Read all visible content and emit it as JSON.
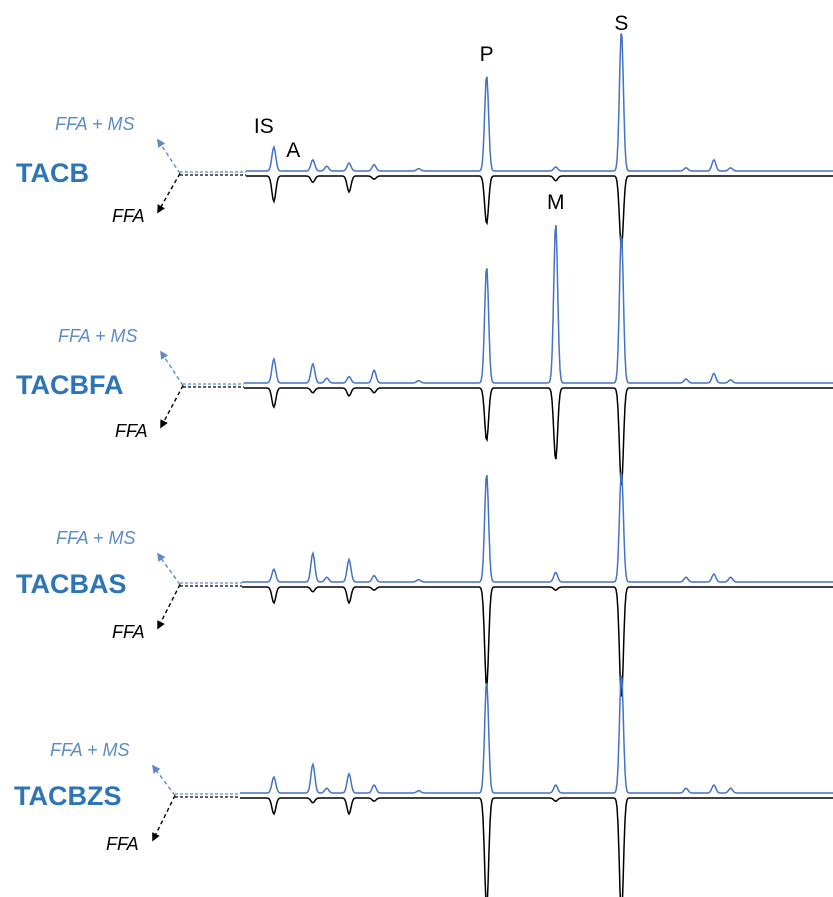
{
  "chart_data": {
    "type": "line",
    "title": "",
    "xlabel": "",
    "ylabel": "",
    "description": "",
    "trace_colors": {
      "upper": "#4472C4",
      "lower": "#000000"
    },
    "x_range": [
      0,
      100
    ],
    "y_range": [
      0,
      100
    ],
    "peak_labels": [
      {
        "label": "IS",
        "x": 5,
        "panel": 0
      },
      {
        "label": "A",
        "x": 11,
        "panel": 0
      },
      {
        "label": "P",
        "x": 43.2,
        "panel": 0
      },
      {
        "label": "S",
        "x": 67.4,
        "panel": 0
      },
      {
        "label": "M",
        "x": 55.6,
        "panel": 1
      }
    ],
    "panels": [
      {
        "sample": "TACB",
        "upper_label": "FFA + MS",
        "lower_label": "FFA",
        "upper_peaks": [
          [
            5,
            15
          ],
          [
            12,
            7
          ],
          [
            14.5,
            3
          ],
          [
            18.5,
            5
          ],
          [
            23,
            4
          ],
          [
            31,
            1.5
          ],
          [
            43.2,
            60
          ],
          [
            55.6,
            2.5
          ],
          [
            67.4,
            88
          ],
          [
            79,
            2
          ],
          [
            84,
            7
          ],
          [
            87,
            2
          ]
        ],
        "lower_peaks": [
          [
            5,
            16
          ],
          [
            12,
            4
          ],
          [
            18.5,
            10
          ],
          [
            23,
            2
          ],
          [
            43.2,
            30
          ],
          [
            55.6,
            3
          ],
          [
            67.4,
            45
          ]
        ]
      },
      {
        "sample": "TACBFA",
        "upper_label": "FFA + MS",
        "lower_label": "FFA",
        "upper_peaks": [
          [
            5,
            15
          ],
          [
            12,
            12
          ],
          [
            14.5,
            3
          ],
          [
            18.5,
            4
          ],
          [
            23,
            8
          ],
          [
            31,
            1.5
          ],
          [
            43.2,
            73
          ],
          [
            55.6,
            100
          ],
          [
            67.4,
            94
          ],
          [
            79,
            2.5
          ],
          [
            84,
            6
          ],
          [
            87,
            2
          ]
        ],
        "lower_peaks": [
          [
            5,
            12
          ],
          [
            12,
            3
          ],
          [
            18.5,
            5
          ],
          [
            23,
            3
          ],
          [
            43.2,
            33
          ],
          [
            55.6,
            45
          ],
          [
            67.4,
            62
          ]
        ]
      },
      {
        "sample": "TACBAS",
        "upper_label": "FFA + MS",
        "lower_label": "FFA",
        "upper_peaks": [
          [
            5,
            8
          ],
          [
            12,
            18
          ],
          [
            14.5,
            3
          ],
          [
            18.5,
            14
          ],
          [
            23,
            4
          ],
          [
            31,
            1.5
          ],
          [
            43.2,
            68
          ],
          [
            55.6,
            6
          ],
          [
            67.4,
            70
          ],
          [
            79,
            3
          ],
          [
            84,
            5
          ],
          [
            87,
            3
          ]
        ],
        "lower_peaks": [
          [
            5,
            10
          ],
          [
            12,
            3
          ],
          [
            18.5,
            10
          ],
          [
            23,
            2
          ],
          [
            43.2,
            63
          ],
          [
            55.6,
            2
          ],
          [
            67.4,
            70
          ]
        ]
      },
      {
        "sample": "TACBZS",
        "upper_label": "FFA + MS",
        "lower_label": "FFA",
        "upper_peaks": [
          [
            5,
            10
          ],
          [
            12,
            18
          ],
          [
            14.5,
            3
          ],
          [
            18.5,
            12
          ],
          [
            23,
            5
          ],
          [
            31,
            1.5
          ],
          [
            43.2,
            70
          ],
          [
            55.6,
            5
          ],
          [
            67.4,
            75
          ],
          [
            79,
            3
          ],
          [
            84,
            5
          ],
          [
            87,
            3
          ]
        ],
        "lower_peaks": [
          [
            5,
            10
          ],
          [
            12,
            3
          ],
          [
            18.5,
            10
          ],
          [
            23,
            2
          ],
          [
            43.2,
            70
          ],
          [
            55.6,
            2
          ],
          [
            67.4,
            75
          ]
        ]
      }
    ]
  }
}
